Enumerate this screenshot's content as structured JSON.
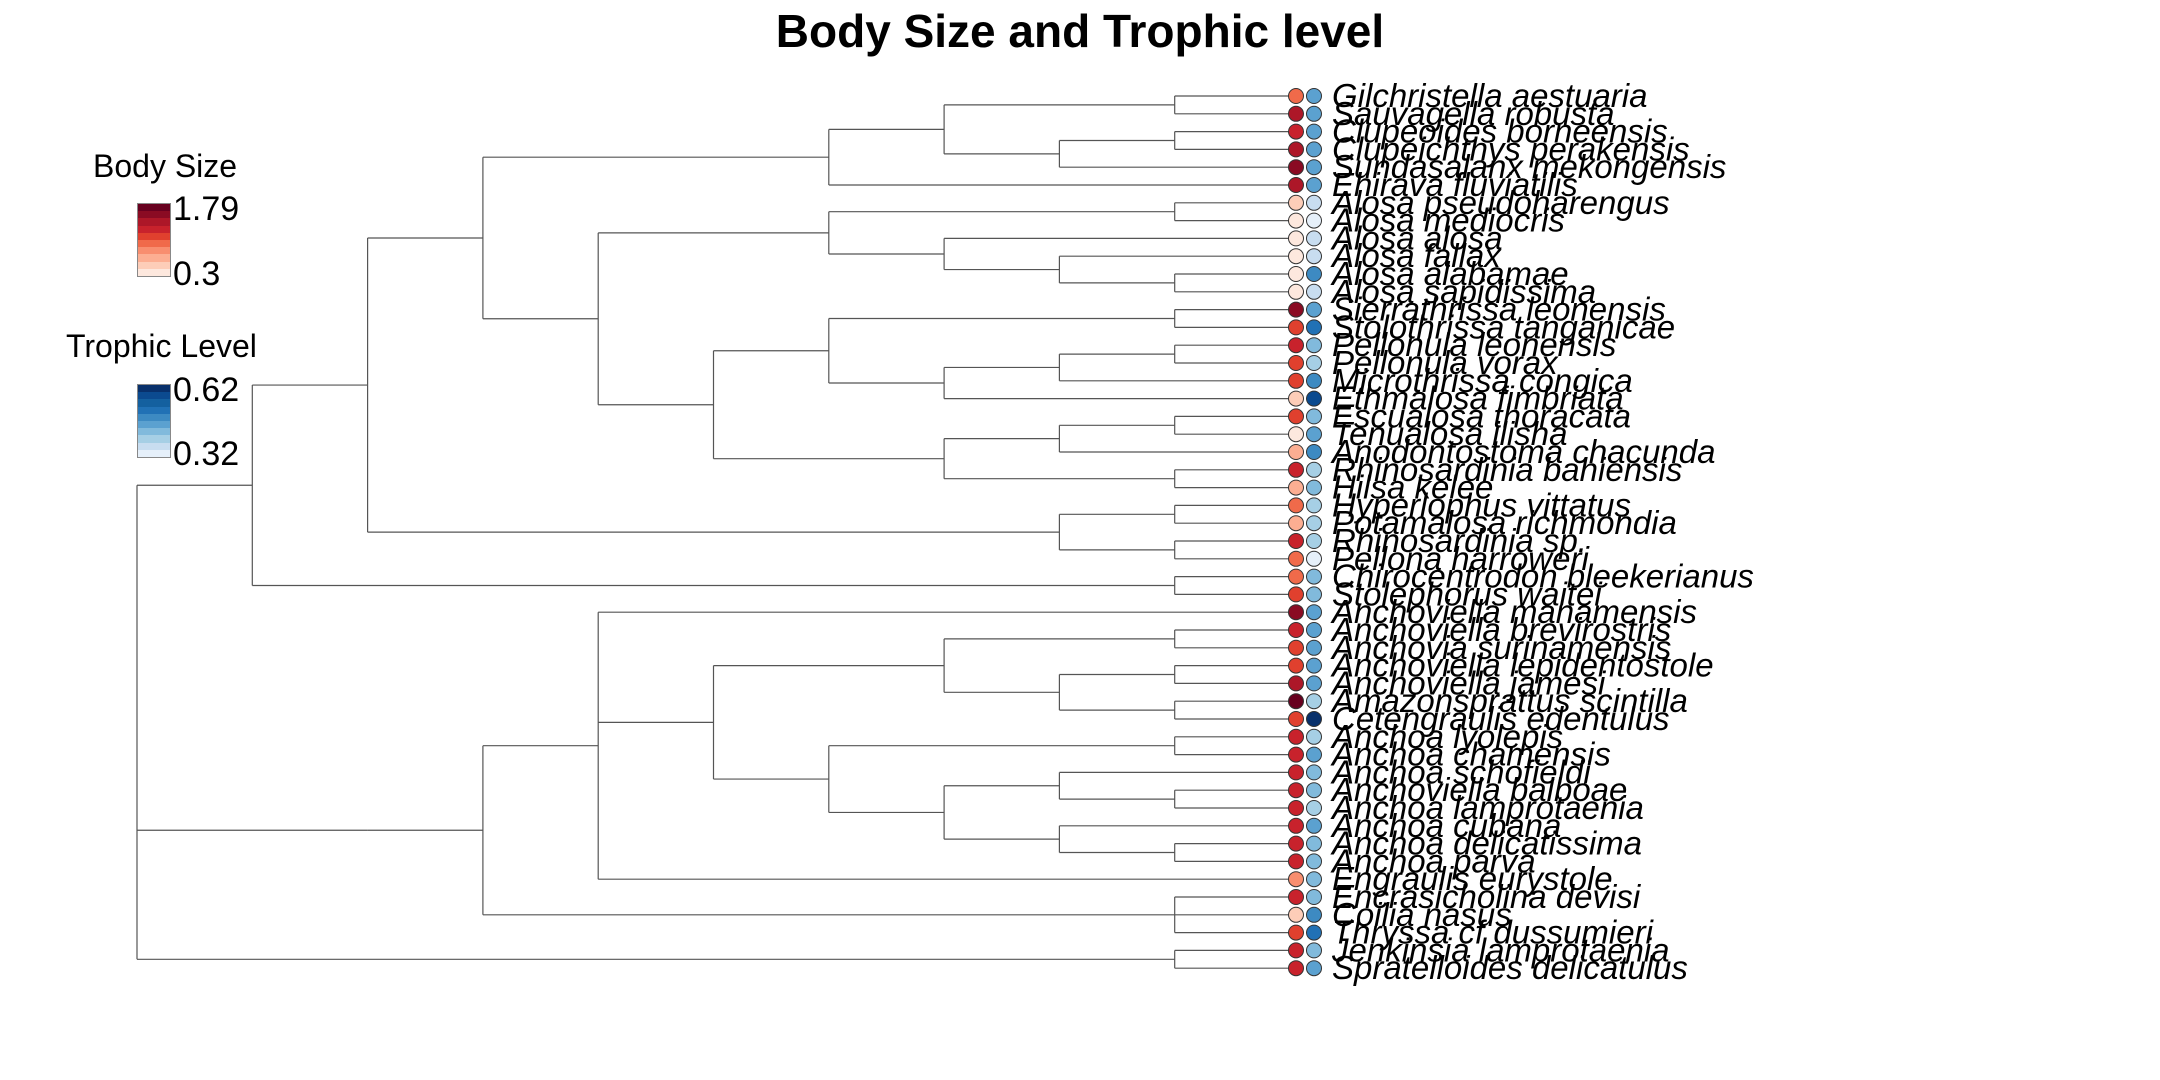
{
  "title": "Body Size and Trophic level",
  "legend": {
    "body_size": {
      "title": "Body Size",
      "max": "1.79",
      "min": "0.3",
      "ramp": [
        "#67001f",
        "#8a0b23",
        "#ad1728",
        "#c8222c",
        "#e0402e",
        "#f06a4a",
        "#f88e6f",
        "#fcae92",
        "#fdcdb8",
        "#fde8de"
      ]
    },
    "trophic": {
      "title": "Trophic Level",
      "max": "0.62",
      "min": "0.32",
      "ramp": [
        "#08306b",
        "#0b4a8f",
        "#14609f",
        "#2171b5",
        "#3d8ac2",
        "#5ba1d0",
        "#81badc",
        "#a6cfe5",
        "#c8ddf0",
        "#e6f0fa"
      ]
    }
  },
  "tree": {
    "name": "root",
    "children": [
      {
        "name": "A",
        "children": [
          {
            "name": "A1",
            "children": [
              {
                "name": "A1a",
                "children": [
                  {
                    "name": "A1a1",
                    "children": [
                      {
                        "name": "G1",
                        "children": [
                          {
                            "name": "G1a",
                            "children": [
                              {
                                "tip": 0
                              },
                              {
                                "tip": 1
                              }
                            ]
                          },
                          {
                            "name": "G1b",
                            "children": [
                              {
                                "name": "G1b1",
                                "children": [
                                  {
                                    "tip": 2
                                  },
                                  {
                                    "tip": 3
                                  }
                                ]
                              },
                              {
                                "tip": 4
                              }
                            ]
                          }
                        ]
                      },
                      {
                        "tip": 5
                      }
                    ]
                  },
                  {
                    "name": "A1a2",
                    "children": [
                      {
                        "name": "Alosa",
                        "children": [
                          {
                            "name": "Al1",
                            "children": [
                              {
                                "tip": 6
                              },
                              {
                                "tip": 7
                              }
                            ]
                          },
                          {
                            "name": "Al2",
                            "children": [
                              {
                                "tip": 8
                              },
                              {
                                "name": "Al3",
                                "children": [
                                  {
                                    "tip": 9
                                  },
                                  {
                                    "name": "Al4",
                                    "children": [
                                      {
                                        "tip": 10
                                      },
                                      {
                                        "tip": 11
                                      }
                                    ]
                                  }
                                ]
                              }
                            ]
                          }
                        ]
                      },
                      {
                        "name": "P1",
                        "children": [
                          {
                            "name": "P1a",
                            "children": [
                              {
                                "name": "P1a1",
                                "children": [
                                  {
                                    "tip": 12
                                  },
                                  {
                                    "tip": 13
                                  }
                                ]
                              },
                              {
                                "name": "P1a2",
                                "children": [
                                  {
                                    "name": "P1a3",
                                    "children": [
                                      {
                                        "name": "P1a4",
                                        "children": [
                                          {
                                            "tip": 14
                                          },
                                          {
                                            "tip": 15
                                          }
                                        ]
                                      },
                                      {
                                        "tip": 16
                                      }
                                    ]
                                  },
                                  {
                                    "tip": 17
                                  }
                                ]
                              }
                            ]
                          },
                          {
                            "name": "P1b",
                            "children": [
                              {
                                "name": "P1b1",
                                "children": [
                                  {
                                    "name": "P1b2",
                                    "children": [
                                      {
                                        "tip": 18
                                      },
                                      {
                                        "tip": 19
                                      }
                                    ]
                                  },
                                  {
                                    "tip": 20
                                  }
                                ]
                              },
                              {
                                "name": "P1b3",
                                "children": [
                                  {
                                    "tip": 21
                                  },
                                  {
                                    "tip": 22
                                  }
                                ]
                              }
                            ]
                          }
                        ]
                      }
                    ]
                  }
                ]
              },
              {
                "name": "A1b",
                "children": [
                  {
                    "name": "A1b1",
                    "children": [
                      {
                        "tip": 23
                      },
                      {
                        "tip": 24
                      }
                    ]
                  },
                  {
                    "name": "A1b2",
                    "children": [
                      {
                        "tip": 25
                      },
                      {
                        "tip": 26
                      }
                    ]
                  }
                ]
              }
            ]
          },
          {
            "name": "A2",
            "children": [
              {
                "tip": 27
              },
              {
                "tip": 28
              }
            ]
          }
        ]
      },
      {
        "name": "B",
        "children": [
          {
            "name": "B1",
            "children": [
              {
                "name": "B1a",
                "children": [
                  {
                    "tip": 29
                  },
                  {
                    "name": "B1b",
                    "children": [
                      {
                        "name": "B1c",
                        "children": [
                          {
                            "name": "B1d",
                            "children": [
                              {
                                "tip": 30
                              },
                              {
                                "tip": 31
                              }
                            ]
                          },
                          {
                            "name": "B1e",
                            "children": [
                              {
                                "name": "B1f",
                                "children": [
                                  {
                                    "tip": 32
                                  },
                                  {
                                    "tip": 33
                                  }
                                ]
                              },
                              {
                                "name": "B1g",
                                "children": [
                                  {
                                    "tip": 34
                                  },
                                  {
                                    "tip": 35
                                  }
                                ]
                              }
                            ]
                          }
                        ]
                      },
                      {
                        "name": "B1h",
                        "children": [
                          {
                            "name": "B1i",
                            "children": [
                              {
                                "tip": 36
                              },
                              {
                                "tip": 37
                              }
                            ]
                          },
                          {
                            "name": "B1j",
                            "children": [
                              {
                                "name": "B1k",
                                "children": [
                                  {
                                    "tip": 38
                                  },
                                  {
                                    "name": "B1l",
                                    "children": [
                                      {
                                        "tip": 39
                                      },
                                      {
                                        "tip": 40
                                      }
                                    ]
                                  }
                                ]
                              },
                              {
                                "name": "B1m",
                                "children": [
                                  {
                                    "tip": 41
                                  },
                                  {
                                    "name": "B1n",
                                    "children": [
                                      {
                                        "tip": 42
                                      },
                                      {
                                        "tip": 43
                                      }
                                    ]
                                  }
                                ]
                              }
                            ]
                          }
                        ]
                      }
                    ]
                  },
                  {
                    "tip": 44
                  }
                ]
              },
              {
                "name": "B2",
                "children": [
                  {
                    "tip": 45
                  },
                  {
                    "tip": 46
                  },
                  {
                    "tip": 47
                  }
                ]
              }
            ]
          }
        ]
      },
      {
        "name": "C",
        "children": [
          {
            "tip": 48
          },
          {
            "tip": 49
          }
        ]
      }
    ]
  },
  "tips": [
    {
      "label": "Gilchristella aestuaria",
      "body": 5,
      "troph": 5
    },
    {
      "label": "Sauvagella robusta",
      "body": 2,
      "troph": 5
    },
    {
      "label": "Clupeoides borneensis",
      "body": 3,
      "troph": 5
    },
    {
      "label": "Clupeichthys perakensis",
      "body": 2,
      "troph": 5
    },
    {
      "label": "Sundasalanx mekongensis",
      "body": 1,
      "troph": 5
    },
    {
      "label": "Ehirava fluviatilis",
      "body": 2,
      "troph": 5
    },
    {
      "label": "Alosa pseudoharengus",
      "body": 8,
      "troph": 8
    },
    {
      "label": "Alosa mediocris",
      "body": 9,
      "troph": 9
    },
    {
      "label": "Alosa alosa",
      "body": 9,
      "troph": 8
    },
    {
      "label": "Alosa fallax",
      "body": 9,
      "troph": 8
    },
    {
      "label": "Alosa alabamae",
      "body": 9,
      "troph": 4
    },
    {
      "label": "Alosa sapidissima",
      "body": 9,
      "troph": 8
    },
    {
      "label": "Sierrathrissa leonensis",
      "body": 1,
      "troph": 5
    },
    {
      "label": "Stolothrissa tanganicae",
      "body": 4,
      "troph": 3
    },
    {
      "label": "Pellonula leonensis",
      "body": 3,
      "troph": 6
    },
    {
      "label": "Pellonula vorax",
      "body": 4,
      "troph": 7
    },
    {
      "label": "Microthrissa congica",
      "body": 4,
      "troph": 4
    },
    {
      "label": "Ethmalosa fimbriata",
      "body": 8,
      "troph": 1
    },
    {
      "label": "Escualosa thoracata",
      "body": 4,
      "troph": 6
    },
    {
      "label": "Tenualosa ilisha",
      "body": 9,
      "troph": 5
    },
    {
      "label": "Anodontostoma chacunda",
      "body": 7,
      "troph": 4
    },
    {
      "label": "Rhinosardinia bahiensis",
      "body": 3,
      "troph": 7
    },
    {
      "label": "Hilsa kelee",
      "body": 7,
      "troph": 6
    },
    {
      "label": "Hyperlophus vittatus",
      "body": 5,
      "troph": 7
    },
    {
      "label": "Potamalosa richmondia",
      "body": 7,
      "troph": 7
    },
    {
      "label": "Rhinosardinia sp.",
      "body": 3,
      "troph": 7
    },
    {
      "label": "Pellona harroweri",
      "body": 5,
      "troph": 9
    },
    {
      "label": "Chirocentrodon bleekerianus",
      "body": 5,
      "troph": 6
    },
    {
      "label": "Stolephorus waitei",
      "body": 4,
      "troph": 6
    },
    {
      "label": "Anchoviella manamensis",
      "body": 1,
      "troph": 5
    },
    {
      "label": "Anchoviella brevirostris",
      "body": 3,
      "troph": 5
    },
    {
      "label": "Anchovia surinamensis",
      "body": 4,
      "troph": 5
    },
    {
      "label": "Anchoviella lepidentostole",
      "body": 4,
      "troph": 5
    },
    {
      "label": "Anchoviella jamesi",
      "body": 2,
      "troph": 5
    },
    {
      "label": "Amazonsprattus scintilla",
      "body": 0,
      "troph": 7
    },
    {
      "label": "Cetengraulis edentulus",
      "body": 4,
      "troph": 0
    },
    {
      "label": "Anchoa lyolepis",
      "body": 3,
      "troph": 7
    },
    {
      "label": "Anchoa chamensis",
      "body": 3,
      "troph": 5
    },
    {
      "label": "Anchoa schofieldi",
      "body": 3,
      "troph": 6
    },
    {
      "label": "Anchoviella balboae",
      "body": 3,
      "troph": 6
    },
    {
      "label": "Anchoa lamprotaenia",
      "body": 3,
      "troph": 7
    },
    {
      "label": "Anchoa cubana",
      "body": 3,
      "troph": 5
    },
    {
      "label": "Anchoa delicatissima",
      "body": 3,
      "troph": 6
    },
    {
      "label": "Anchoa parva",
      "body": 3,
      "troph": 6
    },
    {
      "label": "Engraulis eurystole",
      "body": 6,
      "troph": 6
    },
    {
      "label": "Encrasicholina devisi",
      "body": 3,
      "troph": 6
    },
    {
      "label": "Coilia nasus",
      "body": 8,
      "troph": 4
    },
    {
      "label": "Thryssa cf dussumieri",
      "body": 4,
      "troph": 3
    },
    {
      "label": "Jenkinsia lamprotaenia",
      "body": 3,
      "troph": 6
    },
    {
      "label": "Spratelloides delicatulus",
      "body": 3,
      "troph": 5
    }
  ]
}
